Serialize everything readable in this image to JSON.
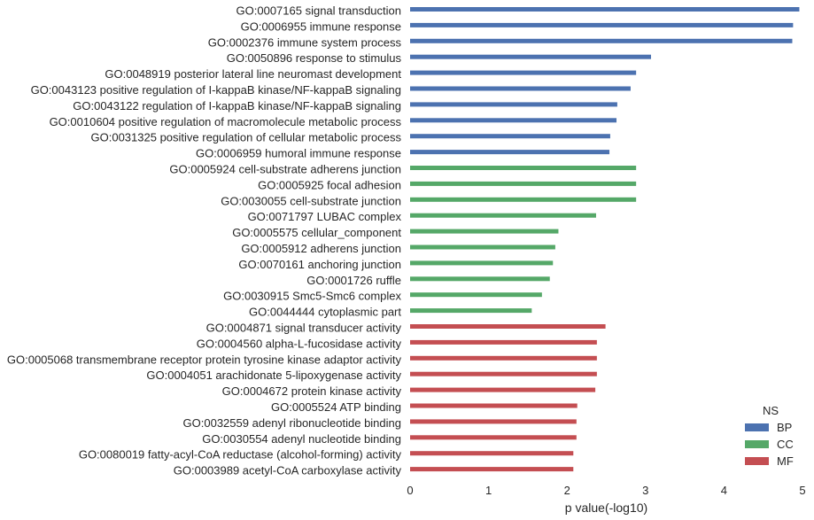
{
  "chart_data": {
    "type": "bar",
    "orientation": "horizontal",
    "xlabel": "p value(-log10)",
    "xlim": [
      0,
      5
    ],
    "xticks": [
      "0",
      "1",
      "2",
      "3",
      "4",
      "5"
    ],
    "grid": false,
    "legend": {
      "title": "NS",
      "placement": "bottom-right",
      "entries": [
        {
          "name": "BP",
          "color": "#4c72b0"
        },
        {
          "name": "CC",
          "color": "#55a868"
        },
        {
          "name": "MF",
          "color": "#c44e52"
        }
      ]
    },
    "categories": [
      {
        "label": "GO:0007165 signal transduction",
        "group": "BP",
        "value": 4.96
      },
      {
        "label": "GO:0006955 immune response",
        "group": "BP",
        "value": 4.88
      },
      {
        "label": "GO:0002376 immune system process",
        "group": "BP",
        "value": 4.87
      },
      {
        "label": "GO:0050896 response to stimulus",
        "group": "BP",
        "value": 3.07
      },
      {
        "label": "GO:0048919 posterior lateral line neuromast development",
        "group": "BP",
        "value": 2.88
      },
      {
        "label": "GO:0043123 positive regulation of I-kappaB kinase/NF-kappaB signaling",
        "group": "BP",
        "value": 2.81
      },
      {
        "label": "GO:0043122 regulation of I-kappaB kinase/NF-kappaB signaling",
        "group": "BP",
        "value": 2.64
      },
      {
        "label": "GO:0010604 positive regulation of macromolecule metabolic process",
        "group": "BP",
        "value": 2.63
      },
      {
        "label": "GO:0031325 positive regulation of cellular metabolic process",
        "group": "BP",
        "value": 2.55
      },
      {
        "label": "GO:0006959 humoral immune response",
        "group": "BP",
        "value": 2.54
      },
      {
        "label": "GO:0005924 cell-substrate adherens junction",
        "group": "CC",
        "value": 2.88
      },
      {
        "label": "GO:0005925 focal adhesion",
        "group": "CC",
        "value": 2.88
      },
      {
        "label": "GO:0030055 cell-substrate junction",
        "group": "CC",
        "value": 2.88
      },
      {
        "label": "GO:0071797 LUBAC complex",
        "group": "CC",
        "value": 2.37
      },
      {
        "label": "GO:0005575 cellular_component",
        "group": "CC",
        "value": 1.89
      },
      {
        "label": "GO:0005912 adherens junction",
        "group": "CC",
        "value": 1.85
      },
      {
        "label": "GO:0070161 anchoring junction",
        "group": "CC",
        "value": 1.82
      },
      {
        "label": "GO:0001726 ruffle",
        "group": "CC",
        "value": 1.78
      },
      {
        "label": "GO:0030915 Smc5-Smc6 complex",
        "group": "CC",
        "value": 1.68
      },
      {
        "label": "GO:0044444 cytoplasmic part",
        "group": "CC",
        "value": 1.55
      },
      {
        "label": "GO:0004871 signal transducer activity",
        "group": "MF",
        "value": 2.49
      },
      {
        "label": "GO:0004560 alpha-L-fucosidase activity",
        "group": "MF",
        "value": 2.38
      },
      {
        "label": "GO:0005068 transmembrane receptor protein tyrosine kinase adaptor activity",
        "group": "MF",
        "value": 2.38
      },
      {
        "label": "GO:0004051 arachidonate 5-lipoxygenase activity",
        "group": "MF",
        "value": 2.38
      },
      {
        "label": "GO:0004672 protein kinase activity",
        "group": "MF",
        "value": 2.36
      },
      {
        "label": "GO:0005524 ATP binding",
        "group": "MF",
        "value": 2.13
      },
      {
        "label": "GO:0032559 adenyl ribonucleotide binding",
        "group": "MF",
        "value": 2.12
      },
      {
        "label": "GO:0030554 adenyl nucleotide binding",
        "group": "MF",
        "value": 2.12
      },
      {
        "label": "GO:0080019 fatty-acyl-CoA reductase (alcohol-forming) activity",
        "group": "MF",
        "value": 2.08
      },
      {
        "label": "GO:0003989 acetyl-CoA carboxylase activity",
        "group": "MF",
        "value": 2.08
      }
    ]
  }
}
